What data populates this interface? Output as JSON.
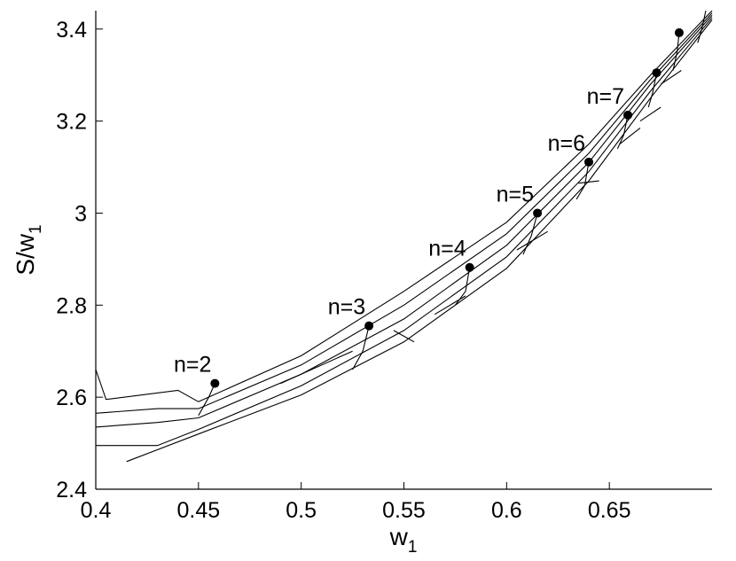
{
  "chart_data": {
    "type": "line",
    "xlabel": "w",
    "xlabel_sub": "1",
    "ylabel": "S/w",
    "ylabel_sub": "1",
    "xlim": [
      0.4,
      0.7
    ],
    "ylim": [
      2.4,
      3.44
    ],
    "xticks": [
      0.4,
      0.45,
      0.5,
      0.55,
      0.6,
      0.65
    ],
    "xtick_labels": [
      "0.4",
      "0.45",
      "0.5",
      "0.55",
      "0.6",
      "0.65"
    ],
    "yticks": [
      2.4,
      2.6,
      2.8,
      3.0,
      3.2,
      3.4
    ],
    "ytick_labels": [
      "2.4",
      "2.6",
      "2.8",
      "3",
      "3.2",
      "3.4"
    ],
    "grid": false,
    "legend": "none",
    "points": [
      {
        "label": "n=2",
        "x": 0.458,
        "y": 2.63
      },
      {
        "label": "n=3",
        "x": 0.533,
        "y": 2.755
      },
      {
        "label": "n=4",
        "x": 0.582,
        "y": 2.882
      },
      {
        "label": "n=5",
        "x": 0.615,
        "y": 3.0
      },
      {
        "label": "n=6",
        "x": 0.64,
        "y": 3.111
      },
      {
        "label": "n=7",
        "x": 0.659,
        "y": 3.213
      },
      {
        "label": "",
        "x": 0.673,
        "y": 3.305
      },
      {
        "label": "",
        "x": 0.684,
        "y": 3.392
      }
    ],
    "series": [
      {
        "values": [
          [
            0.415,
            2.46
          ],
          [
            0.45,
            2.52
          ],
          [
            0.5,
            2.605
          ],
          [
            0.55,
            2.72
          ],
          [
            0.6,
            2.88
          ],
          [
            0.64,
            3.07
          ],
          [
            0.67,
            3.25
          ],
          [
            0.7,
            3.42
          ]
        ]
      },
      {
        "values": [
          [
            0.4,
            2.495
          ],
          [
            0.43,
            2.495
          ],
          [
            0.45,
            2.53
          ],
          [
            0.5,
            2.625
          ],
          [
            0.55,
            2.745
          ],
          [
            0.6,
            2.905
          ],
          [
            0.64,
            3.09
          ],
          [
            0.67,
            3.265
          ],
          [
            0.7,
            3.425
          ]
        ]
      },
      {
        "values": [
          [
            0.4,
            2.535
          ],
          [
            0.43,
            2.545
          ],
          [
            0.45,
            2.555
          ],
          [
            0.5,
            2.65
          ],
          [
            0.55,
            2.77
          ],
          [
            0.6,
            2.93
          ],
          [
            0.64,
            3.11
          ],
          [
            0.67,
            3.28
          ],
          [
            0.7,
            3.43
          ]
        ]
      },
      {
        "values": [
          [
            0.4,
            2.565
          ],
          [
            0.43,
            2.575
          ],
          [
            0.45,
            2.575
          ],
          [
            0.5,
            2.67
          ],
          [
            0.55,
            2.8
          ],
          [
            0.6,
            2.955
          ],
          [
            0.64,
            3.13
          ],
          [
            0.67,
            3.29
          ],
          [
            0.7,
            3.435
          ]
        ]
      },
      {
        "values": [
          [
            0.4,
            2.66
          ],
          [
            0.405,
            2.595
          ],
          [
            0.44,
            2.615
          ],
          [
            0.45,
            2.59
          ],
          [
            0.5,
            2.69
          ],
          [
            0.55,
            2.83
          ],
          [
            0.6,
            2.98
          ],
          [
            0.64,
            3.15
          ],
          [
            0.67,
            3.3
          ],
          [
            0.7,
            3.44
          ]
        ]
      },
      {
        "values": [
          [
            0.458,
            2.63
          ],
          [
            0.455,
            2.6
          ],
          [
            0.45,
            2.56
          ]
        ]
      },
      {
        "values": [
          [
            0.533,
            2.755
          ],
          [
            0.53,
            2.7
          ],
          [
            0.525,
            2.66
          ]
        ]
      },
      {
        "values": [
          [
            0.582,
            2.882
          ],
          [
            0.58,
            2.83
          ],
          [
            0.575,
            2.8
          ]
        ]
      },
      {
        "values": [
          [
            0.615,
            3.0
          ],
          [
            0.612,
            2.95
          ],
          [
            0.608,
            2.91
          ]
        ]
      },
      {
        "values": [
          [
            0.64,
            3.111
          ],
          [
            0.638,
            3.06
          ],
          [
            0.634,
            3.03
          ]
        ]
      },
      {
        "values": [
          [
            0.659,
            3.213
          ],
          [
            0.657,
            3.17
          ],
          [
            0.654,
            3.14
          ]
        ]
      },
      {
        "values": [
          [
            0.673,
            3.305
          ],
          [
            0.671,
            3.26
          ],
          [
            0.669,
            3.23
          ]
        ]
      },
      {
        "values": [
          [
            0.684,
            3.392
          ],
          [
            0.683,
            3.35
          ],
          [
            0.681,
            3.31
          ]
        ]
      },
      {
        "values": [
          [
            0.697,
            3.44
          ],
          [
            0.695,
            3.4
          ],
          [
            0.693,
            3.37
          ]
        ]
      },
      {
        "values": [
          [
            0.49,
            2.63
          ],
          [
            0.525,
            2.7
          ]
        ]
      },
      {
        "values": [
          [
            0.545,
            2.745
          ],
          [
            0.555,
            2.72
          ]
        ]
      },
      {
        "values": [
          [
            0.565,
            2.78
          ],
          [
            0.58,
            2.82
          ]
        ]
      },
      {
        "values": [
          [
            0.605,
            2.92
          ],
          [
            0.62,
            2.96
          ]
        ]
      },
      {
        "values": [
          [
            0.635,
            3.065
          ],
          [
            0.645,
            3.07
          ]
        ]
      },
      {
        "values": [
          [
            0.655,
            3.15
          ],
          [
            0.665,
            3.185
          ]
        ]
      },
      {
        "values": [
          [
            0.665,
            3.2
          ],
          [
            0.675,
            3.23
          ]
        ]
      },
      {
        "values": [
          [
            0.675,
            3.28
          ],
          [
            0.685,
            3.31
          ]
        ]
      }
    ]
  }
}
